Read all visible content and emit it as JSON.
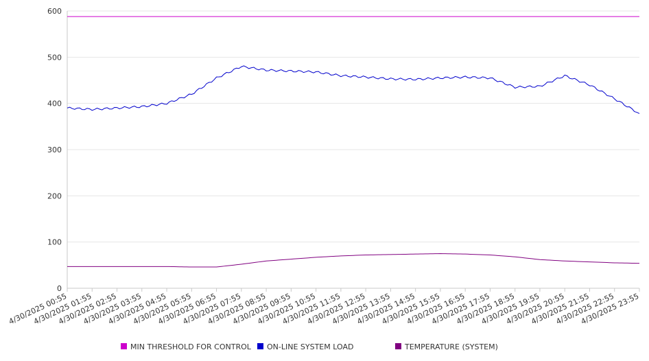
{
  "chart_data": {
    "type": "line",
    "x": [
      "4/30/2025 00:55",
      "4/30/2025 01:55",
      "4/30/2025 02:55",
      "4/30/2025 03:55",
      "4/30/2025 04:55",
      "4/30/2025 05:55",
      "4/30/2025 06:55",
      "4/30/2025 07:55",
      "4/30/2025 08:55",
      "4/30/2025 09:55",
      "4/30/2025 10:55",
      "4/30/2025 11:55",
      "4/30/2025 12:55",
      "4/30/2025 13:55",
      "4/30/2025 14:55",
      "4/30/2025 15:55",
      "4/30/2025 16:55",
      "4/30/2025 17:55",
      "4/30/2025 18:55",
      "4/30/2025 19:55",
      "4/30/2025 20:55",
      "4/30/2025 21:55",
      "4/30/2025 22:55",
      "4/30/2025 23:55"
    ],
    "series": [
      {
        "name": "MIN THRESHOLD FOR CONTROL",
        "color": "#cc00cc",
        "values": [
          588,
          588,
          588,
          588,
          588,
          588,
          588,
          588,
          588,
          588,
          588,
          588,
          588,
          588,
          588,
          588,
          588,
          588,
          588,
          588,
          588,
          588,
          588,
          588
        ]
      },
      {
        "name": "ON-LINE SYSTEM LOAD",
        "color": "#0000cc",
        "values": [
          390,
          387,
          390,
          393,
          400,
          420,
          455,
          480,
          472,
          470,
          468,
          460,
          457,
          453,
          452,
          455,
          457,
          455,
          435,
          437,
          460,
          440,
          410,
          378
        ]
      },
      {
        "name": "TEMPERATURE (SYSTEM)",
        "color": "#800080",
        "values": [
          47,
          47,
          47,
          47,
          47,
          46,
          46,
          52,
          59,
          63,
          67,
          70,
          72,
          73,
          74,
          75,
          74,
          72,
          68,
          62,
          59,
          57,
          55,
          54
        ]
      }
    ],
    "yticks": [
      "0",
      "100",
      "200",
      "300",
      "400",
      "500",
      "600"
    ],
    "ylim": [
      0,
      600
    ],
    "grid": true,
    "legend": "bottom"
  }
}
